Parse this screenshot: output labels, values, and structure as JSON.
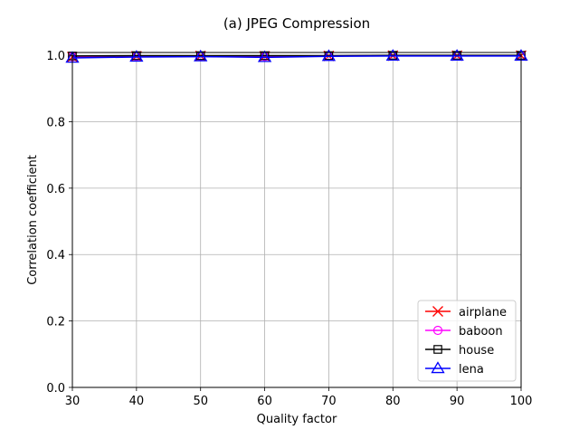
{
  "chart_data": {
    "type": "line",
    "title": "(a) JPEG Compression",
    "xlabel": "Quality factor",
    "ylabel": "Correlation coefficient",
    "xlim": [
      30,
      100
    ],
    "ylim": [
      0,
      1.0
    ],
    "x": [
      30,
      40,
      50,
      60,
      70,
      80,
      90,
      100
    ],
    "xticks": [
      "30",
      "40",
      "50",
      "60",
      "70",
      "80",
      "90",
      "100"
    ],
    "yticks": [
      "0.0",
      "0.2",
      "0.4",
      "0.6",
      "0.8",
      "1.0"
    ],
    "grid": true,
    "legend_position": "lower-right",
    "series": [
      {
        "name": "airplane",
        "color": "#ff0000",
        "marker": "x",
        "values": [
          0.995,
          0.997,
          0.998,
          0.997,
          0.998,
          0.999,
          0.999,
          0.999
        ]
      },
      {
        "name": "baboon",
        "color": "#ff00ff",
        "marker": "circle",
        "values": [
          0.996,
          0.997,
          0.998,
          0.997,
          0.998,
          0.999,
          0.999,
          0.999
        ]
      },
      {
        "name": "house",
        "color": "#000000",
        "marker": "square",
        "values": [
          0.998,
          0.999,
          0.999,
          0.999,
          0.999,
          1.0,
          1.0,
          1.0
        ]
      },
      {
        "name": "lena",
        "color": "#0000ff",
        "marker": "triangle",
        "values": [
          0.992,
          0.995,
          0.996,
          0.994,
          0.997,
          0.998,
          0.998,
          0.998
        ]
      }
    ]
  }
}
